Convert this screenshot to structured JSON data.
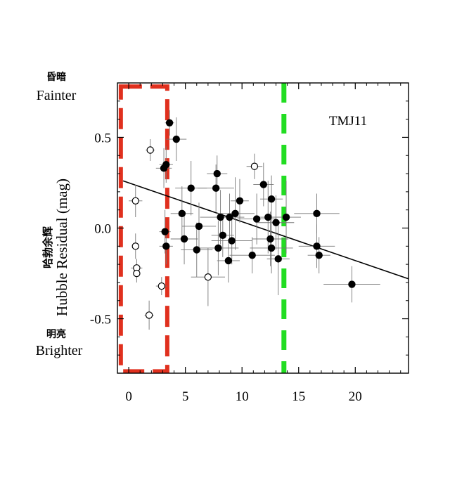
{
  "chart_data": {
    "type": "scatter",
    "annotation": "TMJ11",
    "ylabel": "Hubble Residual (mag)",
    "ylabel_cn": "哈勃余辉",
    "y_top_label": {
      "cn": "昏暗",
      "en": "Fainter"
    },
    "y_bottom_label": {
      "cn": "明亮",
      "en": "Brighter"
    },
    "xlim": [
      -1,
      24.7
    ],
    "ylim": [
      -0.8,
      0.8
    ],
    "x_ticks": [
      0,
      5,
      10,
      15,
      20
    ],
    "y_ticks": [
      0.5,
      0.0,
      -0.5
    ],
    "y_tick_labels": [
      "0.5",
      "0.0",
      "-0.5"
    ],
    "fit_line": {
      "x": [
        -0.5,
        24.7
      ],
      "y": [
        0.26,
        -0.28
      ]
    },
    "regions": [
      {
        "name": "red-dashed-box",
        "color": "#e0301e",
        "x0": -0.7,
        "x1": 3.4,
        "y0": -0.79,
        "y1": 0.78
      },
      {
        "name": "green-dashed-line",
        "color": "#22dd22",
        "x": 13.7
      }
    ],
    "series": [
      {
        "marker": "filled",
        "color": "#000000",
        "points": [
          {
            "x": 3.6,
            "y": 0.58,
            "xerr": 0.4,
            "yerr": 0.07
          },
          {
            "x": 4.2,
            "y": 0.49,
            "xerr": 0.9,
            "yerr": 0.12
          },
          {
            "x": 3.3,
            "y": 0.35,
            "xerr": 0.6,
            "yerr": 0.1
          },
          {
            "x": 3.1,
            "y": 0.33,
            "xerr": 0.7,
            "yerr": 0.11
          },
          {
            "x": 3.2,
            "y": -0.02,
            "xerr": 0.5,
            "yerr": 0.12
          },
          {
            "x": 3.3,
            "y": -0.1,
            "xerr": 0.6,
            "yerr": 0.1
          },
          {
            "x": 4.7,
            "y": 0.08,
            "xerr": 1.0,
            "yerr": 0.15
          },
          {
            "x": 4.9,
            "y": -0.06,
            "xerr": 1.2,
            "yerr": 0.14
          },
          {
            "x": 5.5,
            "y": 0.22,
            "xerr": 1.4,
            "yerr": 0.15
          },
          {
            "x": 6.0,
            "y": -0.12,
            "xerr": 1.4,
            "yerr": 0.15
          },
          {
            "x": 6.2,
            "y": 0.01,
            "xerr": 1.5,
            "yerr": 0.13
          },
          {
            "x": 7.8,
            "y": 0.3,
            "xerr": 0.9,
            "yerr": 0.1
          },
          {
            "x": 7.7,
            "y": 0.22,
            "xerr": 1.6,
            "yerr": 0.13
          },
          {
            "x": 8.1,
            "y": 0.06,
            "xerr": 1.8,
            "yerr": 0.15
          },
          {
            "x": 8.3,
            "y": -0.04,
            "xerr": 1.0,
            "yerr": 0.12
          },
          {
            "x": 7.9,
            "y": -0.11,
            "xerr": 1.8,
            "yerr": 0.15
          },
          {
            "x": 8.9,
            "y": 0.06,
            "xerr": 1.3,
            "yerr": 0.13
          },
          {
            "x": 9.1,
            "y": -0.07,
            "xerr": 1.8,
            "yerr": 0.13
          },
          {
            "x": 8.8,
            "y": -0.18,
            "xerr": 1.0,
            "yerr": 0.12
          },
          {
            "x": 9.4,
            "y": 0.08,
            "xerr": 1.7,
            "yerr": 0.2
          },
          {
            "x": 9.8,
            "y": 0.15,
            "xerr": 0.8,
            "yerr": 0.12
          },
          {
            "x": 10.9,
            "y": -0.15,
            "xerr": 2.0,
            "yerr": 0.1
          },
          {
            "x": 11.3,
            "y": 0.05,
            "xerr": 1.7,
            "yerr": 0.14
          },
          {
            "x": 11.9,
            "y": 0.24,
            "xerr": 0.9,
            "yerr": 0.12
          },
          {
            "x": 12.3,
            "y": 0.06,
            "xerr": 1.2,
            "yerr": 0.2
          },
          {
            "x": 12.6,
            "y": 0.16,
            "xerr": 1.0,
            "yerr": 0.13
          },
          {
            "x": 12.5,
            "y": -0.06,
            "xerr": 1.6,
            "yerr": 0.15
          },
          {
            "x": 12.6,
            "y": -0.11,
            "xerr": 1.9,
            "yerr": 0.14
          },
          {
            "x": 13.0,
            "y": 0.03,
            "xerr": 1.6,
            "yerr": 0.15
          },
          {
            "x": 13.2,
            "y": -0.17,
            "xerr": 1.0,
            "yerr": 0.2
          },
          {
            "x": 13.9,
            "y": 0.06,
            "xerr": 1.3,
            "yerr": 0.2
          },
          {
            "x": 16.6,
            "y": 0.08,
            "xerr": 2.0,
            "yerr": 0.11
          },
          {
            "x": 16.6,
            "y": -0.1,
            "xerr": 1.6,
            "yerr": 0.12
          },
          {
            "x": 16.8,
            "y": -0.15,
            "xerr": 1.0,
            "yerr": 0.1
          },
          {
            "x": 19.7,
            "y": -0.31,
            "xerr": 2.5,
            "yerr": 0.1
          }
        ]
      },
      {
        "marker": "open",
        "color": "#000000",
        "points": [
          {
            "x": 1.9,
            "y": 0.43,
            "xerr": 0.4,
            "yerr": 0.06
          },
          {
            "x": 0.6,
            "y": 0.15,
            "xerr": 0.6,
            "yerr": 0.09
          },
          {
            "x": 0.6,
            "y": -0.1,
            "xerr": 0.3,
            "yerr": 0.07
          },
          {
            "x": 0.7,
            "y": -0.22,
            "xerr": 0.5,
            "yerr": 0.05
          },
          {
            "x": 0.7,
            "y": -0.25,
            "xerr": 0.3,
            "yerr": 0.05
          },
          {
            "x": 2.9,
            "y": -0.32,
            "xerr": 0.5,
            "yerr": 0.05
          },
          {
            "x": 1.8,
            "y": -0.48,
            "xerr": 0.4,
            "yerr": 0.08
          },
          {
            "x": 7.0,
            "y": -0.27,
            "xerr": 1.5,
            "yerr": 0.16
          },
          {
            "x": 11.1,
            "y": 0.34,
            "xerr": 0.7,
            "yerr": 0.07
          }
        ]
      }
    ]
  }
}
